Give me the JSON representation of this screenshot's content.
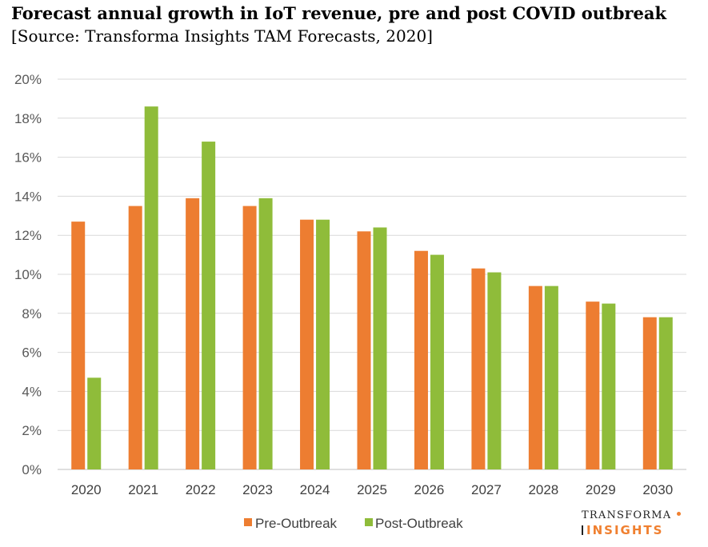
{
  "chart_data": {
    "type": "bar",
    "title": "Forecast annual growth in IoT revenue, pre and post COVID outbreak",
    "subtitle": "[Source: Transforma Insights TAM Forecasts, 2020]",
    "categories": [
      "2020",
      "2021",
      "2022",
      "2023",
      "2024",
      "2025",
      "2026",
      "2027",
      "2028",
      "2029",
      "2030"
    ],
    "series": [
      {
        "name": "Pre-Outbreak",
        "color": "#ed7d31",
        "values": [
          12.7,
          13.5,
          13.9,
          13.5,
          12.8,
          12.2,
          11.2,
          10.3,
          9.4,
          8.6,
          7.8
        ]
      },
      {
        "name": "Post-Outbreak",
        "color": "#8fbc3a",
        "values": [
          4.7,
          18.6,
          16.8,
          13.9,
          12.8,
          12.4,
          11.0,
          10.1,
          9.4,
          8.5,
          7.8
        ]
      }
    ],
    "y_ticks": [
      "0%",
      "2%",
      "4%",
      "6%",
      "8%",
      "10%",
      "12%",
      "14%",
      "16%",
      "18%",
      "20%"
    ],
    "ylim": [
      0,
      20
    ],
    "xlabel": "",
    "ylabel": "",
    "grid": true,
    "legend": "bottom"
  },
  "logo": {
    "line1": "TRANSFORMA",
    "line2": "INSIGHTS"
  }
}
